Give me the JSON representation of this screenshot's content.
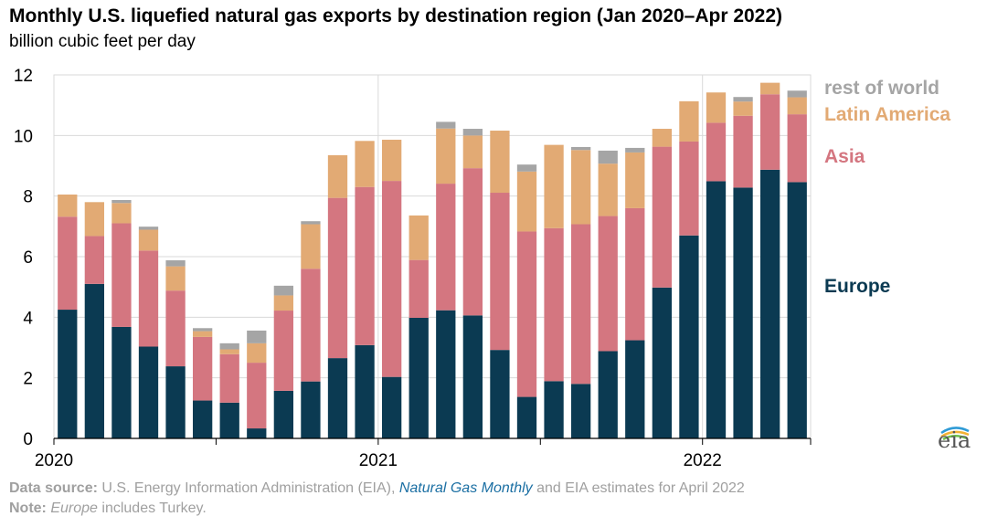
{
  "title": "Monthly U.S. liquefied natural gas exports by destination region (Jan 2020–Apr 2022)",
  "subtitle": "billion cubic feet per day",
  "footer": {
    "source_label": "Data source:",
    "source_text_1": " U.S. Energy Information Administration (EIA), ",
    "source_link": "Natural Gas Monthly",
    "source_text_2": " and EIA estimates for April 2022",
    "note_label": "Note:",
    "note_italic": "Europe",
    "note_text": " includes Turkey."
  },
  "logo": {
    "text": "eia",
    "icon": "eia-logo-icon"
  },
  "colors": {
    "Europe": "#0b3a52",
    "Asia": "#d47680",
    "Latin America": "#e2aa74",
    "rest of world": "#a5a5a5",
    "grid": "#d9d9d9"
  },
  "chart_data": {
    "type": "bar",
    "stacked": true,
    "title": "Monthly U.S. liquefied natural gas exports by destination region (Jan 2020–Apr 2022)",
    "ylabel": "billion cubic feet per day",
    "ylim": [
      0,
      12
    ],
    "yticks": [
      0,
      2,
      4,
      6,
      8,
      10,
      12
    ],
    "xtick_labels": [
      {
        "label": "2020",
        "index": 0
      },
      {
        "label": "2021",
        "index": 12
      },
      {
        "label": "2022",
        "index": 24
      }
    ],
    "grid": true,
    "legend_placement": "right, labels stacked in series order",
    "categories": [
      "2020-01",
      "2020-02",
      "2020-03",
      "2020-04",
      "2020-05",
      "2020-06",
      "2020-07",
      "2020-08",
      "2020-09",
      "2020-10",
      "2020-11",
      "2020-12",
      "2021-01",
      "2021-02",
      "2021-03",
      "2021-04",
      "2021-05",
      "2021-06",
      "2021-07",
      "2021-08",
      "2021-09",
      "2021-10",
      "2021-11",
      "2021-12",
      "2022-01",
      "2022-02",
      "2022-03",
      "2022-04"
    ],
    "series": [
      {
        "name": "Europe",
        "values": [
          4.25,
          5.1,
          3.68,
          3.03,
          2.38,
          1.25,
          1.18,
          0.33,
          1.57,
          1.88,
          2.65,
          3.08,
          2.03,
          3.98,
          4.23,
          4.06,
          2.92,
          1.37,
          1.89,
          1.8,
          2.88,
          3.24,
          4.98,
          6.7,
          8.49,
          8.28,
          8.87,
          8.46
        ]
      },
      {
        "name": "Asia",
        "values": [
          3.07,
          1.58,
          3.42,
          3.17,
          2.5,
          2.1,
          1.6,
          2.17,
          2.65,
          3.72,
          5.29,
          5.22,
          6.47,
          1.91,
          4.18,
          4.86,
          5.19,
          5.46,
          5.05,
          5.27,
          4.46,
          4.36,
          4.65,
          3.1,
          1.93,
          2.37,
          2.49,
          2.24
        ]
      },
      {
        "name": "Latin America",
        "values": [
          0.73,
          1.12,
          0.67,
          0.69,
          0.8,
          0.19,
          0.16,
          0.64,
          0.5,
          1.47,
          1.41,
          1.52,
          1.36,
          1.47,
          1.82,
          1.08,
          2.05,
          1.98,
          2.75,
          2.45,
          1.73,
          1.84,
          0.59,
          1.33,
          1.0,
          0.47,
          0.38,
          0.56
        ]
      },
      {
        "name": "rest of world",
        "values": [
          0,
          0,
          0.1,
          0.1,
          0.2,
          0.1,
          0.2,
          0.42,
          0.32,
          0.1,
          0,
          0,
          0,
          0,
          0.22,
          0.22,
          0,
          0.23,
          0,
          0.1,
          0.43,
          0.15,
          0,
          0,
          0,
          0.15,
          0,
          0.22
        ]
      }
    ]
  }
}
